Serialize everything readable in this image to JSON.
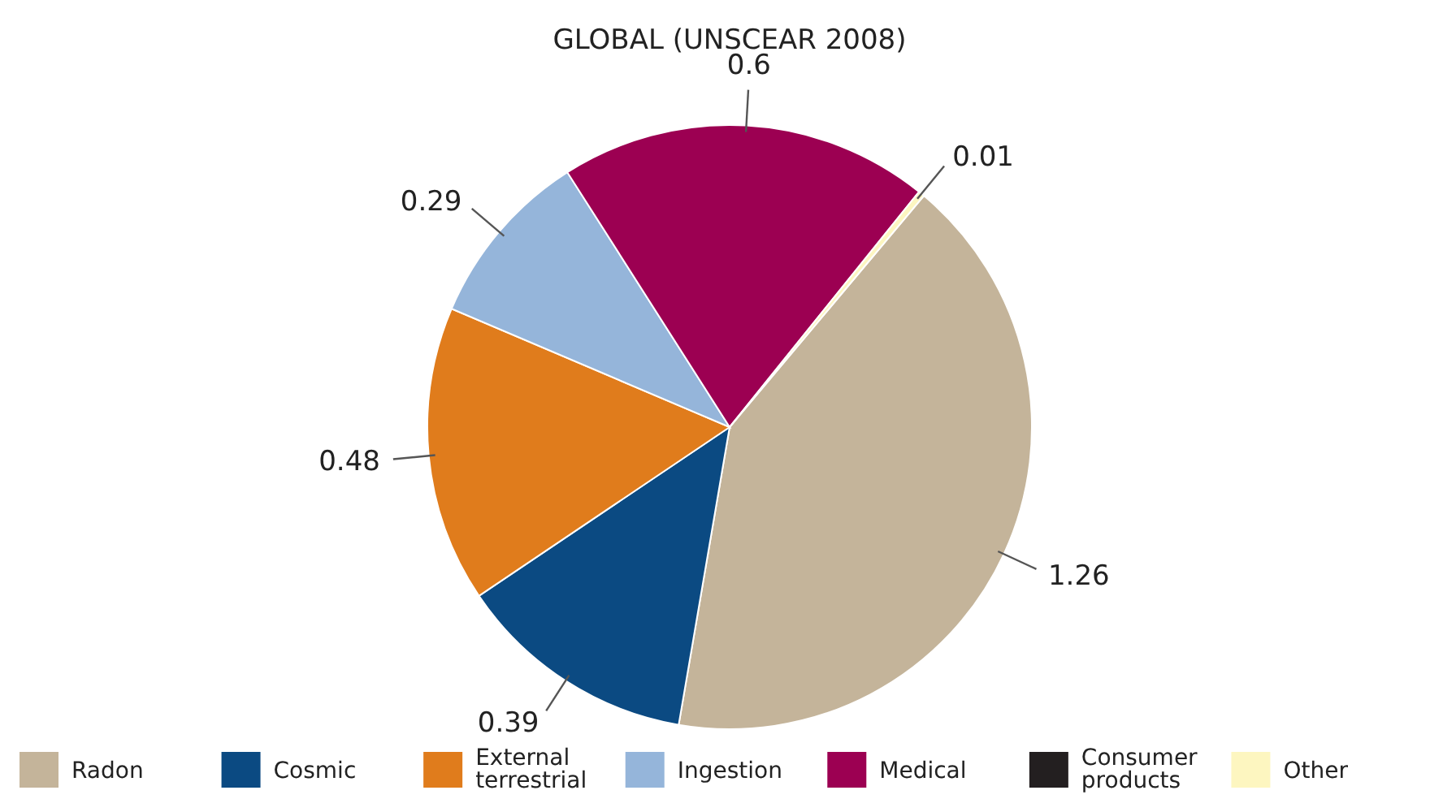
{
  "chart_data": {
    "type": "pie",
    "title": "GLOBAL (UNSCEAR 2008)",
    "categories": [
      "Radon",
      "Cosmic",
      "External terrestrial",
      "Ingestion",
      "Medical",
      "Consumer products",
      "Other"
    ],
    "values": [
      1.26,
      0.39,
      0.48,
      0.29,
      0.6,
      0,
      0.01
    ],
    "value_labels": [
      "1.26",
      "0.39",
      "0.48",
      "0.29",
      "0.6",
      null,
      "0.01"
    ],
    "colors": [
      "#c4b49a",
      "#0b4a82",
      "#e07c1c",
      "#95b5da",
      "#9c0052",
      "#231f20",
      "#fdf6c0"
    ],
    "legend": "bottom"
  }
}
